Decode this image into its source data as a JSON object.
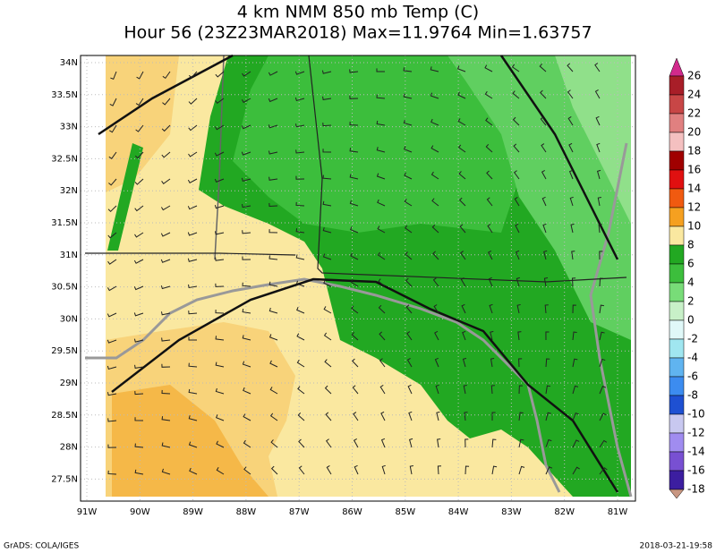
{
  "header": {
    "title": "4 km NMM 850 mb Temp (C)",
    "subtitle": "Hour 56 (23Z23MAR2018) Max=11.9764 Min=1.63757"
  },
  "map": {
    "lat_labels": [
      "34N",
      "33.5N",
      "33N",
      "32.5N",
      "32N",
      "31.5N",
      "31N",
      "30.5N",
      "30N",
      "29.5N",
      "29N",
      "28.5N",
      "28N",
      "27.5N"
    ],
    "lon_labels": [
      "91W",
      "90W",
      "89W",
      "88W",
      "87W",
      "86W",
      "85W",
      "84W",
      "83W",
      "82W",
      "81W"
    ]
  },
  "colorbar": {
    "labels": [
      26,
      24,
      22,
      20,
      18,
      16,
      14,
      12,
      10,
      8,
      6,
      4,
      2,
      0,
      -2,
      -4,
      -6,
      -8,
      -10,
      -12,
      -14,
      -16,
      -18
    ],
    "colors": [
      "#d22a8c",
      "#a81e28",
      "#c84646",
      "#e08080",
      "#f4c0c0",
      "#a00000",
      "#e01010",
      "#f05a10",
      "#f5a020",
      "#fae8a0",
      "#22a822",
      "#3cbe3c",
      "#78dc78",
      "#c8f0c8",
      "#e0f8f8",
      "#a0e6f0",
      "#60b4f0",
      "#3c8cf0",
      "#1e50d2",
      "#c8c8f0",
      "#a08cf0",
      "#7850d2",
      "#3c1ea0",
      "#c89682"
    ]
  },
  "footer": {
    "left": "GrADS: COLA/IGES",
    "right": "2018-03-21-19:58"
  }
}
